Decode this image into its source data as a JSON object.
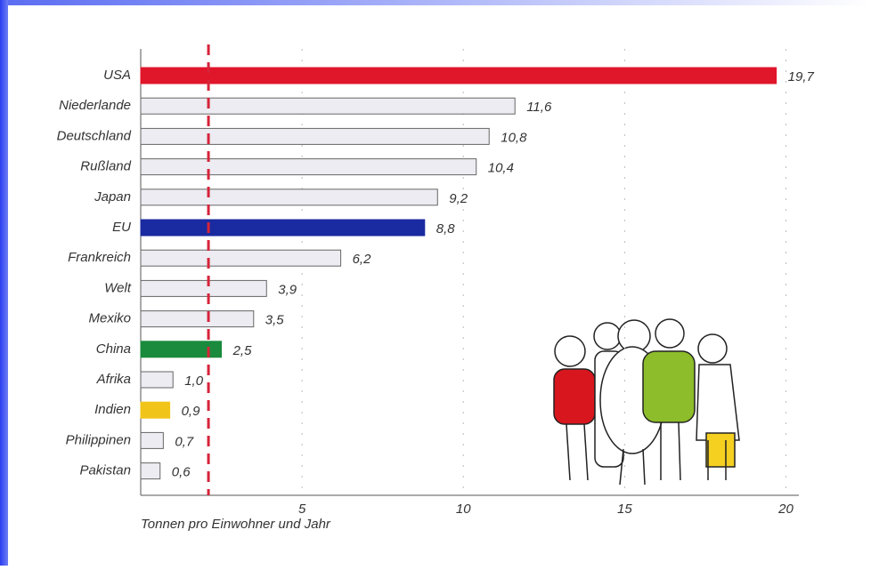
{
  "chart_data": {
    "type": "barh",
    "categories": [
      "USA",
      "Niederlande",
      "Deutschland",
      "Rußland",
      "Japan",
      "EU",
      "Frankreich",
      "Welt",
      "Mexiko",
      "China",
      "Afrika",
      "Indien",
      "Philippinen",
      "Pakistan"
    ],
    "values": [
      19.7,
      11.6,
      10.8,
      10.4,
      9.2,
      8.8,
      6.2,
      3.9,
      3.5,
      2.5,
      1.0,
      0.9,
      0.7,
      0.6
    ],
    "value_labels": [
      "19,7",
      "11,6",
      "10,8",
      "10,4",
      "9,2",
      "8,8",
      "6,2",
      "3,9",
      "3,5",
      "2,5",
      "1,0",
      "0,9",
      "0,7",
      "0,6"
    ],
    "colors": [
      "#e0162b",
      "#ececf2",
      "#ececf2",
      "#ececf2",
      "#ececf2",
      "#1a2aa0",
      "#ececf2",
      "#ececf2",
      "#ececf2",
      "#1a8a3c",
      "#ececf2",
      "#f0c419",
      "#ececf2",
      "#ececf2"
    ],
    "xlabel": "Tonnen pro Einwohner und Jahr",
    "xlim": [
      0,
      20.4
    ],
    "xticks": [
      5,
      10,
      15,
      20
    ],
    "grid": true,
    "reference_line": {
      "value": 2.1,
      "color": "#d6243a"
    }
  }
}
